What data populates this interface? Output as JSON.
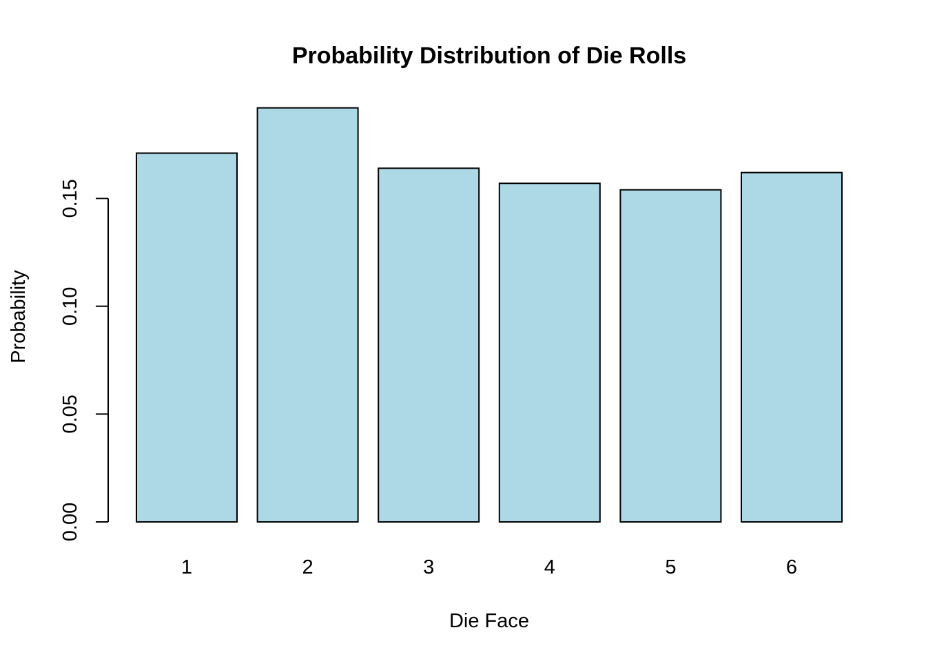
{
  "chart_data": {
    "type": "bar",
    "title": "Probability Distribution of Die Rolls",
    "xlabel": "Die Face",
    "ylabel": "Probability",
    "categories": [
      "1",
      "2",
      "3",
      "4",
      "5",
      "6"
    ],
    "values": [
      0.171,
      0.192,
      0.164,
      0.157,
      0.154,
      0.162
    ],
    "ylim": [
      0,
      0.192
    ],
    "yticks": [
      "0.00",
      "0.05",
      "0.10",
      "0.15"
    ],
    "ytick_values": [
      0,
      0.05,
      0.1,
      0.15
    ],
    "bar_color": "#ADD8E6",
    "edge_color": "#000000",
    "grid": false,
    "legend": "none"
  }
}
